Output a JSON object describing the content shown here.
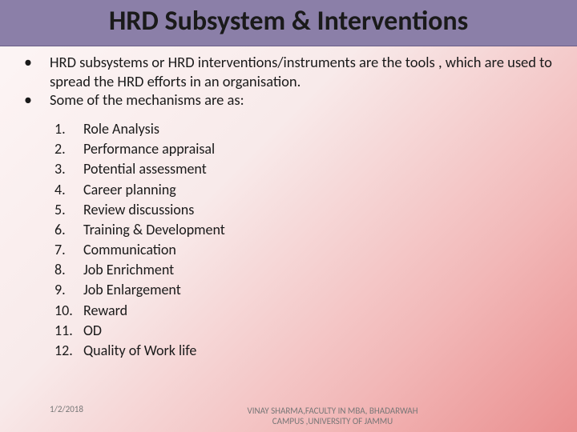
{
  "title": "HRD Subsystem & Interventions",
  "bullets": [
    "HRD subsystems or HRD interventions/instruments are the tools , which are used to spread the HRD efforts in an organisation.",
    "Some of the mechanisms are as:"
  ],
  "items": [
    "Role Analysis",
    "Performance appraisal",
    "Potential assessment",
    "Career planning",
    "Review discussions",
    "Training & Development",
    "Communication",
    "Job Enrichment",
    "Job Enlargement",
    "Reward",
    "OD",
    "Quality of Work life"
  ],
  "footer": {
    "date": "1/2/2018",
    "credit": "VINAY SHARMA,FACULTY IN MBA, BHADARWAH CAMPUS ,UNIVERSITY OF JAMMU"
  },
  "colors": {
    "titlebar": "#8b7fa8",
    "text": "#1a1a1a",
    "footer": "#777777"
  }
}
